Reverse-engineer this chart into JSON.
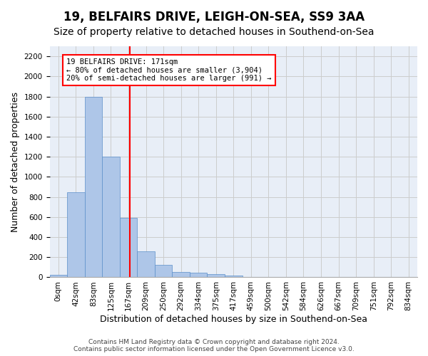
{
  "title1": "19, BELFAIRS DRIVE, LEIGH-ON-SEA, SS9 3AA",
  "title2": "Size of property relative to detached houses in Southend-on-Sea",
  "xlabel": "Distribution of detached houses by size in Southend-on-Sea",
  "ylabel": "Number of detached properties",
  "bar_values": [
    25,
    845,
    1800,
    1200,
    590,
    260,
    125,
    50,
    45,
    30,
    15,
    0,
    0,
    0,
    0,
    0,
    0,
    0,
    0,
    0,
    0
  ],
  "bar_labels": [
    "0sqm",
    "42sqm",
    "83sqm",
    "125sqm",
    "167sqm",
    "209sqm",
    "250sqm",
    "292sqm",
    "334sqm",
    "375sqm",
    "417sqm",
    "459sqm",
    "500sqm",
    "542sqm",
    "584sqm",
    "626sqm",
    "667sqm",
    "709sqm",
    "751sqm",
    "792sqm",
    "834sqm"
  ],
  "bar_color": "#aec6e8",
  "bar_edge_color": "#5b8fc9",
  "bar_width": 1.0,
  "vline_x": 4.08,
  "vline_color": "red",
  "annotation_text": "19 BELFAIRS DRIVE: 171sqm\n← 80% of detached houses are smaller (3,904)\n20% of semi-detached houses are larger (991) →",
  "annotation_box_color": "white",
  "annotation_border_color": "red",
  "ylim": [
    0,
    2300
  ],
  "yticks": [
    0,
    200,
    400,
    600,
    800,
    1000,
    1200,
    1400,
    1600,
    1800,
    2000,
    2200
  ],
  "grid_color": "#cccccc",
  "bg_color": "#e8eef7",
  "footer1": "Contains HM Land Registry data © Crown copyright and database right 2024.",
  "footer2": "Contains public sector information licensed under the Open Government Licence v3.0.",
  "title1_fontsize": 12,
  "title2_fontsize": 10,
  "xlabel_fontsize": 9,
  "ylabel_fontsize": 9,
  "tick_fontsize": 7.5,
  "footer_fontsize": 6.5
}
